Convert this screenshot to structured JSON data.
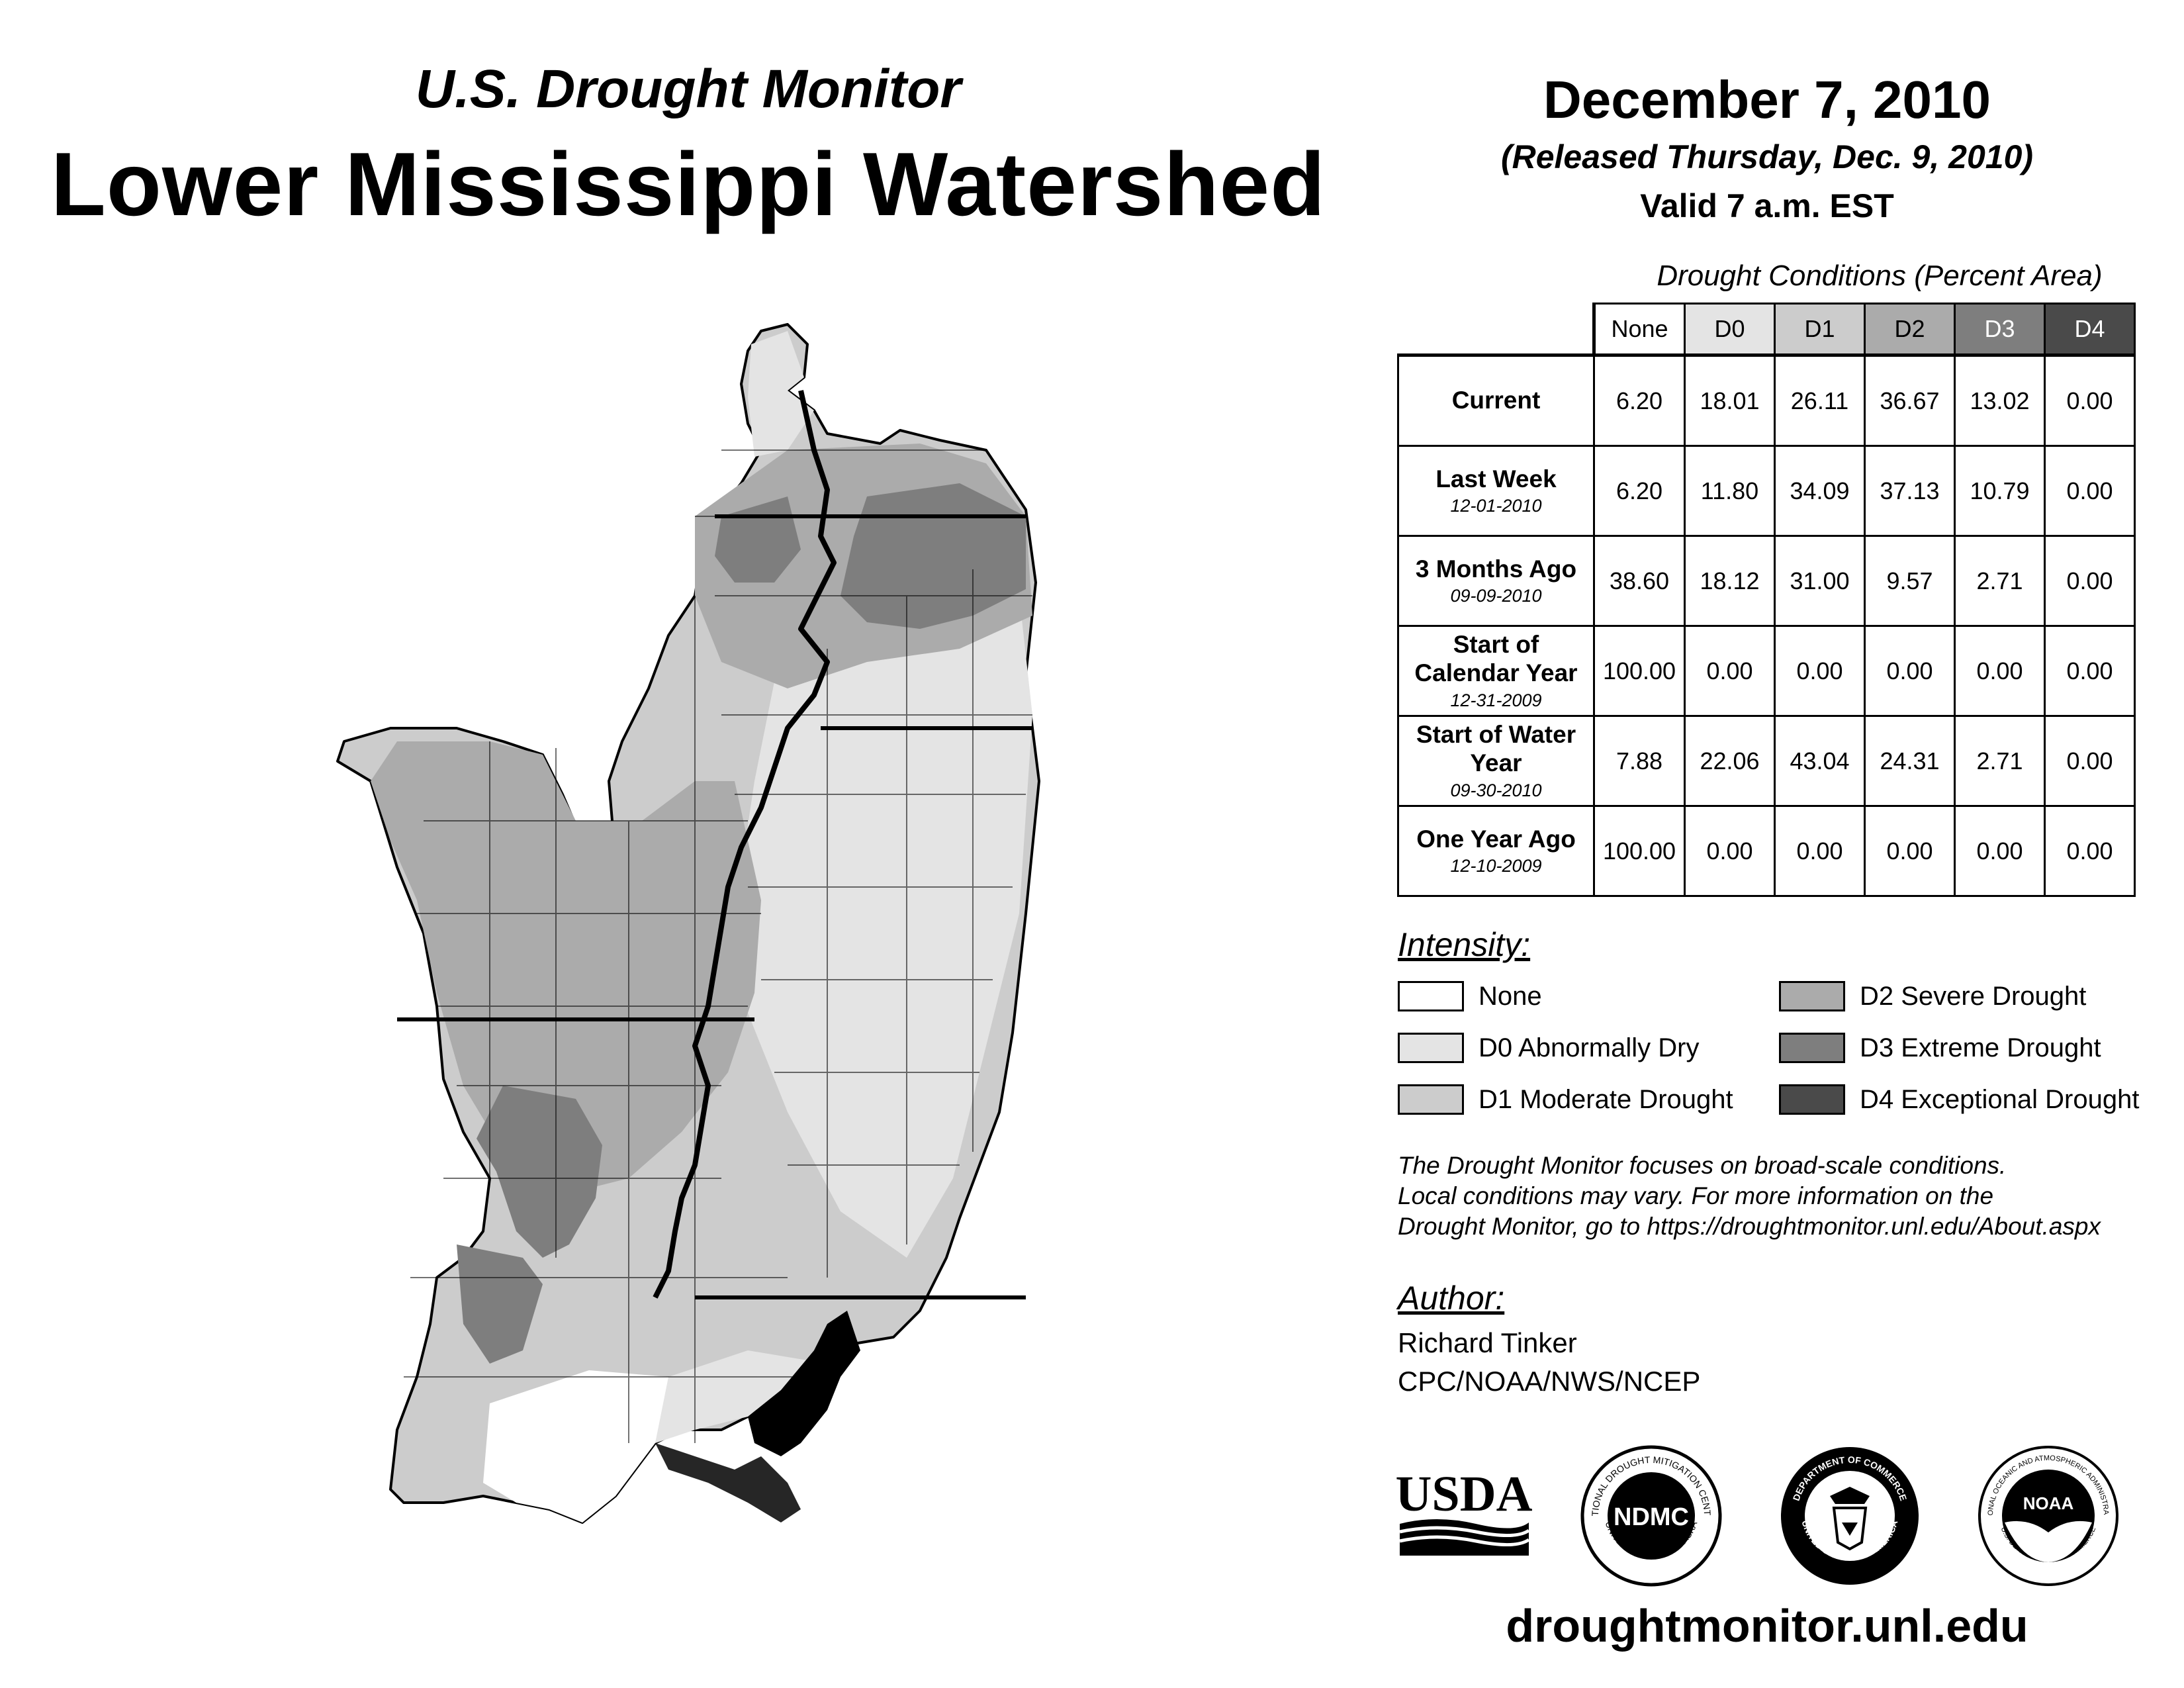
{
  "header": {
    "subtitle": "U.S. Drought Monitor",
    "title": "Lower Mississippi Watershed",
    "date": "December 7, 2010",
    "released": "(Released Thursday, Dec. 9, 2010)",
    "valid": "Valid 7 a.m. EST"
  },
  "table": {
    "caption": "Drought Conditions (Percent Area)",
    "columns": [
      "None",
      "D0",
      "D1",
      "D2",
      "D3",
      "D4"
    ],
    "column_colors": [
      "#ffffff",
      "#e4e4e4",
      "#cccccc",
      "#ababab",
      "#7e7e7e",
      "#4a4a4a"
    ],
    "column_text_colors": [
      "#000000",
      "#000000",
      "#000000",
      "#000000",
      "#ffffff",
      "#ffffff"
    ],
    "rows": [
      {
        "label": "Current",
        "date": "",
        "values": [
          "6.20",
          "18.01",
          "26.11",
          "36.67",
          "13.02",
          "0.00"
        ]
      },
      {
        "label": "Last Week",
        "date": "12-01-2010",
        "values": [
          "6.20",
          "11.80",
          "34.09",
          "37.13",
          "10.79",
          "0.00"
        ]
      },
      {
        "label": "3 Months Ago",
        "date": "09-09-2010",
        "values": [
          "38.60",
          "18.12",
          "31.00",
          "9.57",
          "2.71",
          "0.00"
        ]
      },
      {
        "label": "Start of Calendar Year",
        "date": "12-31-2009",
        "values": [
          "100.00",
          "0.00",
          "0.00",
          "0.00",
          "0.00",
          "0.00"
        ]
      },
      {
        "label": "Start of Water Year",
        "date": "09-30-2010",
        "values": [
          "7.88",
          "22.06",
          "43.04",
          "24.31",
          "2.71",
          "0.00"
        ]
      },
      {
        "label": "One Year Ago",
        "date": "12-10-2009",
        "values": [
          "100.00",
          "0.00",
          "0.00",
          "0.00",
          "0.00",
          "0.00"
        ]
      }
    ]
  },
  "legend": {
    "title": "Intensity:",
    "items": [
      {
        "label": "None",
        "color": "#ffffff"
      },
      {
        "label": "D0 Abnormally Dry",
        "color": "#e4e4e4"
      },
      {
        "label": "D1 Moderate Drought",
        "color": "#cccccc"
      },
      {
        "label": "D2 Severe Drought",
        "color": "#ababab"
      },
      {
        "label": "D3 Extreme Drought",
        "color": "#7e7e7e"
      },
      {
        "label": "D4 Exceptional Drought",
        "color": "#4a4a4a"
      }
    ]
  },
  "note": {
    "line1": "The Drought Monitor focuses on broad-scale conditions.",
    "line2": "Local conditions may vary. For more information on the",
    "line3": "Drought Monitor, go to https://droughtmonitor.unl.edu/About.aspx"
  },
  "author": {
    "heading": "Author:",
    "name": "Richard Tinker",
    "org": "CPC/NOAA/NWS/NCEP"
  },
  "logos": {
    "usda": "USDA",
    "ndmc": "NDMC",
    "ndmc_ring_top": "NATIONAL DROUGHT MITIGATION CENTER",
    "ndmc_ring_bottom": "UNIVERSITY OF NEBRASKA",
    "doc_ring_top": "DEPARTMENT OF COMMERCE",
    "doc_ring_bottom": "UNITED STATES OF AMERICA",
    "noaa": "NOAA",
    "noaa_ring_top": "NATIONAL OCEANIC AND ATMOSPHERIC ADMINISTRATION",
    "noaa_ring_bottom": "U.S. DEPARTMENT OF COMMERCE"
  },
  "website": "droughtmonitor.unl.edu"
}
